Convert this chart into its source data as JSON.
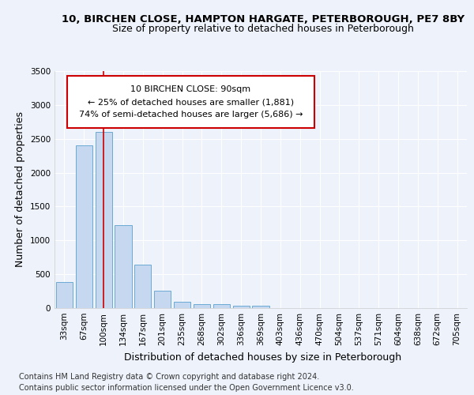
{
  "title_line1": "10, BIRCHEN CLOSE, HAMPTON HARGATE, PETERBOROUGH, PE7 8BY",
  "title_line2": "Size of property relative to detached houses in Peterborough",
  "xlabel": "Distribution of detached houses by size in Peterborough",
  "ylabel": "Number of detached properties",
  "categories": [
    "33sqm",
    "67sqm",
    "100sqm",
    "134sqm",
    "167sqm",
    "201sqm",
    "235sqm",
    "268sqm",
    "302sqm",
    "336sqm",
    "369sqm",
    "403sqm",
    "436sqm",
    "470sqm",
    "504sqm",
    "537sqm",
    "571sqm",
    "604sqm",
    "638sqm",
    "672sqm",
    "705sqm"
  ],
  "values": [
    390,
    2400,
    2600,
    1230,
    640,
    255,
    90,
    55,
    55,
    40,
    30,
    0,
    0,
    0,
    0,
    0,
    0,
    0,
    0,
    0,
    0
  ],
  "bar_color": "#c5d8f0",
  "bar_edge_color": "#6aaad4",
  "highlight_bar_index": 2,
  "highlight_line_color": "#cc0000",
  "ylim": [
    0,
    3500
  ],
  "yticks": [
    0,
    500,
    1000,
    1500,
    2000,
    2500,
    3000,
    3500
  ],
  "annotation_box_text": "10 BIRCHEN CLOSE: 90sqm\n← 25% of detached houses are smaller (1,881)\n74% of semi-detached houses are larger (5,686) →",
  "footer_line1": "Contains HM Land Registry data © Crown copyright and database right 2024.",
  "footer_line2": "Contains public sector information licensed under the Open Government Licence v3.0.",
  "background_color": "#eef2fb",
  "grid_color": "#ffffff",
  "title_fontsize": 9.5,
  "subtitle_fontsize": 9,
  "axis_label_fontsize": 9,
  "tick_fontsize": 7.5,
  "footer_fontsize": 7
}
